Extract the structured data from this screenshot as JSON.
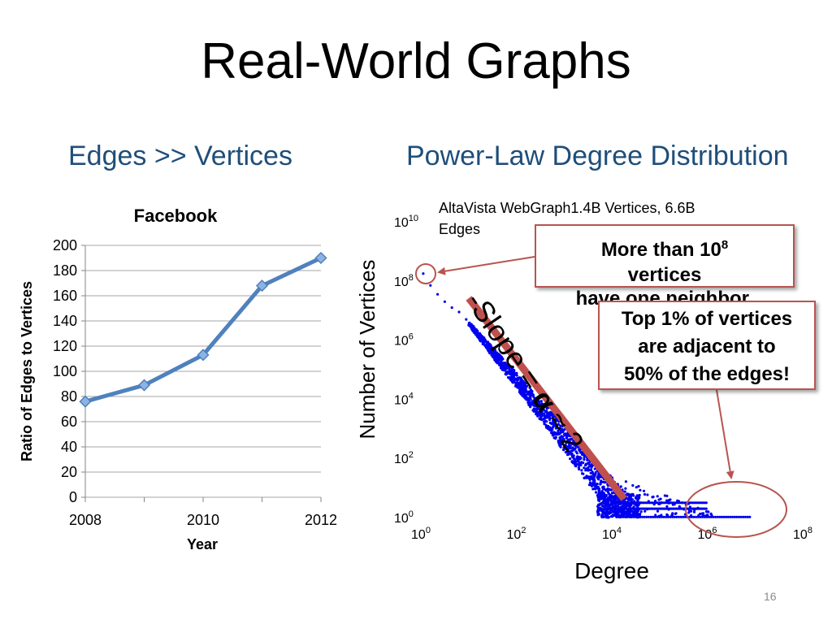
{
  "slide": {
    "title": "Real-World Graphs",
    "left_subtitle": "Edges >> Vertices",
    "right_subtitle": "Power-Law Degree Distribution",
    "slide_number": "16"
  },
  "chart_data": [
    {
      "type": "line",
      "title": "Facebook",
      "xlabel": "Year",
      "ylabel": "Ratio of Edges to Vertices",
      "x": [
        2008,
        2009,
        2010,
        2011,
        2012
      ],
      "values": [
        76,
        89,
        113,
        168,
        190
      ],
      "xlim": [
        2008,
        2012
      ],
      "ylim": [
        0,
        200
      ],
      "x_ticks": [
        "2008",
        "2010",
        "2012"
      ],
      "y_ticks": [
        "0",
        "20",
        "40",
        "60",
        "80",
        "100",
        "120",
        "140",
        "160",
        "180",
        "200"
      ],
      "grid": true,
      "line_color": "#4f81bd",
      "marker": "diamond"
    },
    {
      "type": "scatter",
      "scale": "log-log",
      "title": "AltaVista WebGraph1.4B Vertices, 6.6B Edges",
      "xlabel": "Degree",
      "ylabel": "Number of  Vertices",
      "x_tick_exponents": [
        0,
        2,
        4,
        6,
        8
      ],
      "y_tick_exponents": [
        0,
        2,
        4,
        6,
        8,
        10
      ],
      "tick_base": "10",
      "xlim_log10": [
        0,
        8
      ],
      "ylim_log10": [
        0,
        10
      ],
      "point_color": "#0000ee",
      "trend_line_color": "#c0504d",
      "trend_label_parts": [
        "-Slope",
        " = ",
        "α",
        " ≈ 2"
      ]
    }
  ],
  "annotations": {
    "one_neighbor_pre": "More than 10",
    "one_neighbor_exp": "8",
    "one_neighbor_line2": "vertices",
    "one_neighbor_line3": "have one neighbor.",
    "top_percent_line1": "Top 1% of vertices",
    "top_percent_line2": "are adjacent to",
    "top_percent_line3": "50% of the edges!",
    "accent_color": "#b85450"
  }
}
